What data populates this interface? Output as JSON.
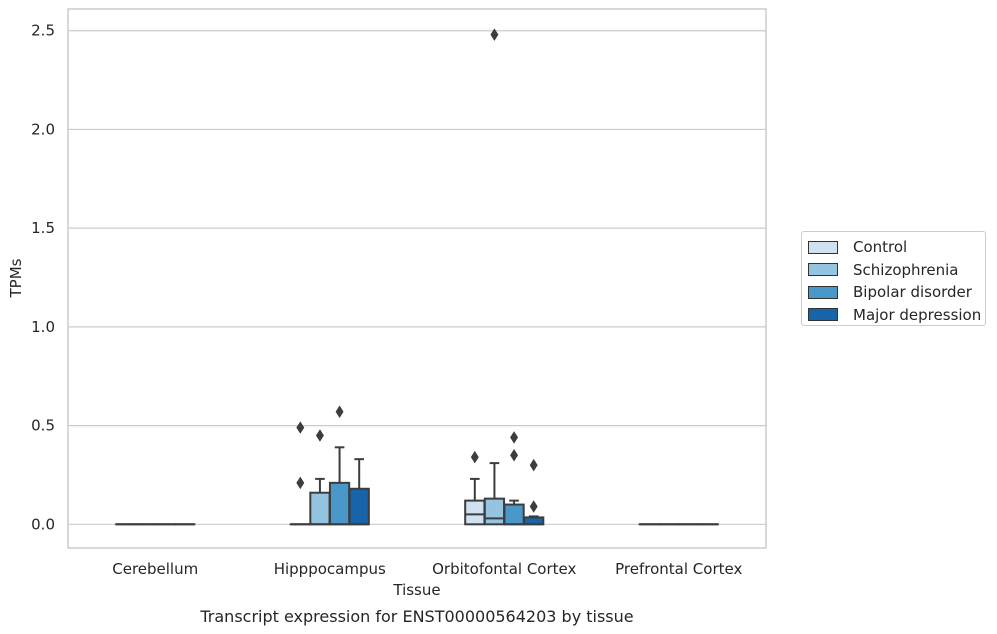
{
  "chart_data": {
    "type": "box",
    "title": "Transcript expression for ENST00000564203 by tissue",
    "xlabel": "Tissue",
    "ylabel": "TPMs",
    "ylim": [
      -0.12,
      2.61
    ],
    "yticks": [
      0.0,
      0.5,
      1.0,
      1.5,
      2.0,
      2.5
    ],
    "ytick_labels": [
      "0.0",
      "0.5",
      "1.0",
      "1.5",
      "2.0",
      "2.5"
    ],
    "categories": [
      "Cerebellum",
      "Hipppocampus",
      "Orbitofontal Cortex",
      "Prefrontal Cortex"
    ],
    "grid": "horizontal",
    "legend_position": "right",
    "series": [
      {
        "name": "Control",
        "color": "#d0e1f2",
        "boxes": [
          {
            "q1": 0,
            "median": 0,
            "q3": 0,
            "whisker_low": 0,
            "whisker_high": 0,
            "outliers": []
          },
          {
            "q1": 0,
            "median": 0,
            "q3": 0,
            "whisker_low": 0,
            "whisker_high": 0,
            "outliers": [
              0.49,
              0.21
            ]
          },
          {
            "q1": 0,
            "median": 0.05,
            "q3": 0.12,
            "whisker_low": 0,
            "whisker_high": 0.23,
            "outliers": [
              0.34
            ]
          },
          {
            "q1": 0,
            "median": 0,
            "q3": 0,
            "whisker_low": 0,
            "whisker_high": 0,
            "outliers": []
          }
        ]
      },
      {
        "name": "Schizophrenia",
        "color": "#94c4df",
        "boxes": [
          {
            "q1": 0,
            "median": 0,
            "q3": 0,
            "whisker_low": 0,
            "whisker_high": 0,
            "outliers": []
          },
          {
            "q1": 0,
            "median": 0,
            "q3": 0.16,
            "whisker_low": 0,
            "whisker_high": 0.23,
            "outliers": [
              0.45
            ]
          },
          {
            "q1": 0,
            "median": 0.03,
            "q3": 0.13,
            "whisker_low": 0,
            "whisker_high": 0.31,
            "outliers": [
              2.48
            ]
          },
          {
            "q1": 0,
            "median": 0,
            "q3": 0,
            "whisker_low": 0,
            "whisker_high": 0,
            "outliers": []
          }
        ]
      },
      {
        "name": "Bipolar disorder",
        "color": "#4a98c9",
        "boxes": [
          {
            "q1": 0,
            "median": 0,
            "q3": 0,
            "whisker_low": 0,
            "whisker_high": 0,
            "outliers": []
          },
          {
            "q1": 0,
            "median": 0,
            "q3": 0.21,
            "whisker_low": 0,
            "whisker_high": 0.39,
            "outliers": [
              0.57
            ]
          },
          {
            "q1": 0,
            "median": 0,
            "q3": 0.1,
            "whisker_low": 0,
            "whisker_high": 0.12,
            "outliers": [
              0.44,
              0.35
            ]
          },
          {
            "q1": 0,
            "median": 0,
            "q3": 0,
            "whisker_low": 0,
            "whisker_high": 0,
            "outliers": []
          }
        ]
      },
      {
        "name": "Major depression",
        "color": "#1764ab",
        "boxes": [
          {
            "q1": 0,
            "median": 0,
            "q3": 0,
            "whisker_low": 0,
            "whisker_high": 0,
            "outliers": []
          },
          {
            "q1": 0,
            "median": 0,
            "q3": 0.18,
            "whisker_low": 0,
            "whisker_high": 0.33,
            "outliers": []
          },
          {
            "q1": 0,
            "median": 0,
            "q3": 0.035,
            "whisker_low": 0,
            "whisker_high": 0.04,
            "outliers": [
              0.3,
              0.09
            ]
          },
          {
            "q1": 0,
            "median": 0,
            "q3": 0,
            "whisker_low": 0,
            "whisker_high": 0,
            "outliers": []
          }
        ]
      }
    ]
  }
}
